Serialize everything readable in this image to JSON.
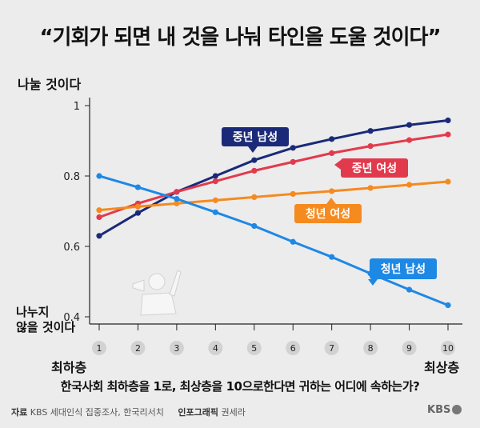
{
  "title": "“기회가 되면 내 것을 나눠 타인을 도울 것이다”",
  "y_label_top": "나눌 것이다",
  "y_label_bottom_line1": "나누지",
  "y_label_bottom_line2": "않을 것이다",
  "x_label_left": "최하층",
  "x_label_right": "최상층",
  "question": "한국사회 최하층을 1로, 최상층을 10으로한다면 귀하는 어디에 속하는가?",
  "footer": {
    "source_label": "자료",
    "source_text": "KBS 세대인식 집중조사, 한국리서치",
    "graphic_label": "인포그래픽",
    "graphic_text": "권세라"
  },
  "brand": "KBS",
  "chart_data": {
    "type": "line",
    "x": [
      1,
      2,
      3,
      4,
      5,
      6,
      7,
      8,
      9,
      10
    ],
    "y_ticks": [
      "1",
      "0.8",
      "0.6",
      "0.4"
    ],
    "ylim": [
      0.4,
      1.0
    ],
    "grid": false,
    "series": [
      {
        "name": "중년 남성",
        "color": "#1a2a78",
        "values": [
          0.63,
          0.695,
          0.755,
          0.8,
          0.845,
          0.88,
          0.905,
          0.928,
          0.945,
          0.958
        ]
      },
      {
        "name": "중년 여성",
        "color": "#e23a4d",
        "values": [
          0.683,
          0.722,
          0.755,
          0.785,
          0.815,
          0.84,
          0.865,
          0.885,
          0.902,
          0.918
        ]
      },
      {
        "name": "청년 여성",
        "color": "#f58a1f",
        "values": [
          0.703,
          0.713,
          0.722,
          0.731,
          0.74,
          0.749,
          0.757,
          0.766,
          0.775,
          0.784
        ]
      },
      {
        "name": "청년 남성",
        "color": "#1e88e5",
        "values": [
          0.8,
          0.768,
          0.735,
          0.697,
          0.658,
          0.613,
          0.57,
          0.523,
          0.477,
          0.433
        ]
      }
    ]
  }
}
